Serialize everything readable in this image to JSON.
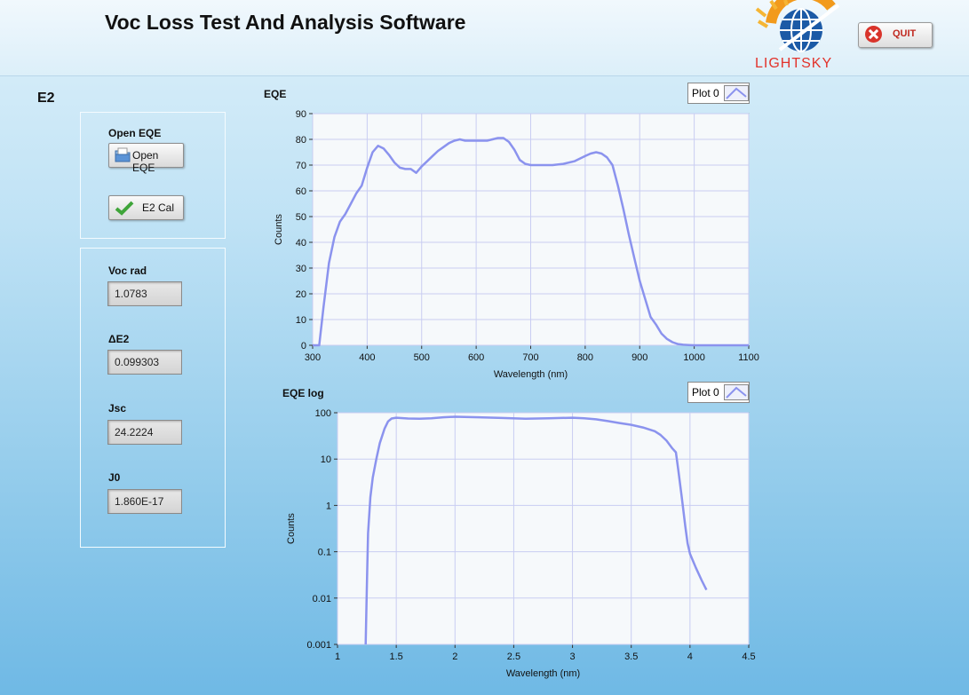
{
  "app": {
    "title": "Voc Loss Test And Analysis Software",
    "logo_text": "LIGHTSKY",
    "quit_label": "QUIT"
  },
  "page_label": "E2",
  "controls": {
    "open_eqe_label": "Open EQE",
    "open_eqe_button": "Open EQE",
    "e2_cal_button": "E2 Cal"
  },
  "indicators": [
    {
      "label": "Voc rad",
      "value": "1.0783"
    },
    {
      "label": "ΔE2",
      "value": "0.099303"
    },
    {
      "label": "Jsc",
      "value": "24.2224"
    },
    {
      "label": "J0",
      "value": "1.860E-17"
    }
  ],
  "colors": {
    "plot_line": "#8b93ee",
    "grid": "#c9cdf2",
    "plot_bg": "#f6f9fb"
  },
  "chart_data": [
    {
      "type": "line",
      "title": "EQE",
      "xlabel": "Wavelength (nm)",
      "ylabel": "Counts",
      "xlim": [
        300,
        1100
      ],
      "ylim": [
        0,
        90
      ],
      "x_ticks": [
        "300",
        "400",
        "500",
        "600",
        "700",
        "800",
        "900",
        "1000",
        "1100"
      ],
      "y_ticks": [
        "0",
        "10",
        "20",
        "30",
        "40",
        "50",
        "60",
        "70",
        "80",
        "90"
      ],
      "legend": "top-right",
      "series": [
        {
          "name": "Plot 0",
          "x": [
            300,
            312,
            320,
            330,
            340,
            350,
            360,
            370,
            380,
            390,
            400,
            410,
            420,
            430,
            440,
            450,
            460,
            470,
            480,
            490,
            500,
            510,
            520,
            530,
            540,
            550,
            560,
            570,
            580,
            590,
            600,
            610,
            620,
            630,
            640,
            650,
            660,
            670,
            680,
            690,
            700,
            720,
            740,
            760,
            780,
            800,
            810,
            820,
            830,
            840,
            850,
            860,
            870,
            880,
            890,
            900,
            910,
            920,
            930,
            940,
            950,
            960,
            970,
            980,
            990,
            1000,
            1020,
            1050,
            1100
          ],
          "y": [
            0,
            0,
            15,
            32,
            42,
            48,
            51,
            55,
            59,
            62,
            69,
            75,
            77.5,
            76.5,
            74,
            71,
            69,
            68.5,
            68.5,
            67,
            69.5,
            71.5,
            73.5,
            75.5,
            77,
            78.5,
            79.5,
            80,
            79.5,
            79.5,
            79.5,
            79.5,
            79.5,
            80,
            80.5,
            80.5,
            79,
            76,
            72,
            70.5,
            70,
            70,
            70,
            70.5,
            71.5,
            73.5,
            74.5,
            75,
            74.5,
            73,
            70,
            62,
            53,
            43,
            34,
            25,
            18,
            11,
            8,
            4.5,
            2.5,
            1.2,
            0.5,
            0.2,
            0.1,
            0,
            0,
            0,
            0
          ]
        }
      ]
    },
    {
      "type": "line",
      "title": "EQE log",
      "xlabel": "Wavelength (nm)",
      "ylabel": "Counts",
      "y_scale": "log",
      "xlim": [
        1,
        4.5
      ],
      "ylim": [
        0.001,
        100
      ],
      "x_ticks": [
        "1",
        "1.5",
        "2",
        "2.5",
        "3",
        "3.5",
        "4",
        "4.5"
      ],
      "y_ticks": [
        "0.001",
        "0.01",
        "0.1",
        "1",
        "10",
        "100"
      ],
      "legend": "top-right",
      "series": [
        {
          "name": "Plot 0",
          "x": [
            1.24,
            1.25,
            1.26,
            1.28,
            1.3,
            1.33,
            1.36,
            1.4,
            1.43,
            1.46,
            1.5,
            1.6,
            1.7,
            1.8,
            1.9,
            2.0,
            2.2,
            2.4,
            2.6,
            2.8,
            3.0,
            3.1,
            3.2,
            3.3,
            3.4,
            3.5,
            3.6,
            3.7,
            3.75,
            3.8,
            3.85,
            3.88,
            3.9,
            3.93,
            3.96,
            3.98,
            4.0,
            4.05,
            4.1,
            4.14
          ],
          "y": [
            0.001,
            0.02,
            0.25,
            1.5,
            4,
            10,
            22,
            45,
            65,
            75,
            78,
            75,
            74,
            76,
            80,
            82,
            80,
            77,
            74,
            76,
            78,
            76,
            72,
            66,
            60,
            55,
            48,
            40,
            33,
            25,
            17,
            14,
            6,
            1.5,
            0.35,
            0.15,
            0.09,
            0.045,
            0.024,
            0.015
          ]
        }
      ]
    }
  ]
}
